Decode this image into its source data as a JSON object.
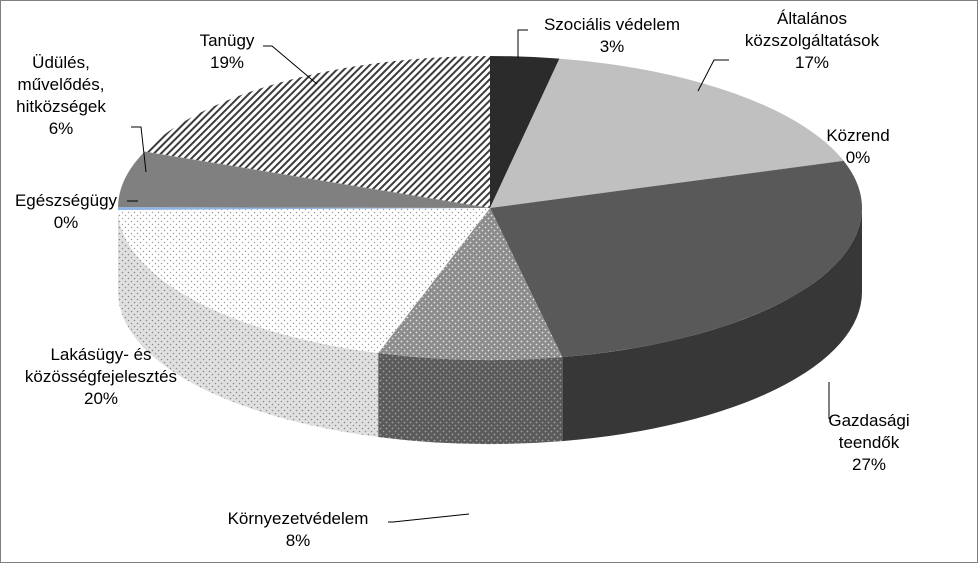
{
  "chart_data": {
    "type": "pie",
    "variant": "3d",
    "legend": "none",
    "slices": [
      {
        "label": [
          "Szociális védelem"
        ],
        "pct": "3%",
        "value": 3,
        "color": "#2b2b2b",
        "pattern": "solid"
      },
      {
        "label": [
          "Általános",
          "közszolgáltatások"
        ],
        "pct": "17%",
        "value": 17,
        "color": "#c0c0c0",
        "pattern": "solid"
      },
      {
        "label": [
          "Közrend"
        ],
        "pct": "0%",
        "value": 0.05,
        "color": "#a6a6a6",
        "pattern": "solid"
      },
      {
        "label": [
          "Gazdasági",
          "teendők"
        ],
        "pct": "27%",
        "value": 27,
        "color": "#595959",
        "pattern": "solid",
        "bold_first_line": true
      },
      {
        "label": [
          "Környezetvédelem"
        ],
        "pct": "8%",
        "value": 8,
        "color": "#7f7f7f",
        "pattern": "dots"
      },
      {
        "label": [
          "Lakásügy- és",
          "közösségfejelesztés"
        ],
        "pct": "20%",
        "value": 20,
        "color": "#ffffff",
        "pattern": "sparse-dots"
      },
      {
        "label": [
          "Egészségügy"
        ],
        "pct": "0%",
        "value": 0.3,
        "color": "#8eb4e3",
        "pattern": "solid"
      },
      {
        "label": [
          "Üdülés,",
          "művelődés,",
          "hitközségek"
        ],
        "pct": "6%",
        "value": 6,
        "color": "#808080",
        "pattern": "solid"
      },
      {
        "label": [
          "Tanügy"
        ],
        "pct": "19%",
        "value": 19,
        "color": "#ffffff",
        "pattern": "hatch"
      }
    ]
  }
}
